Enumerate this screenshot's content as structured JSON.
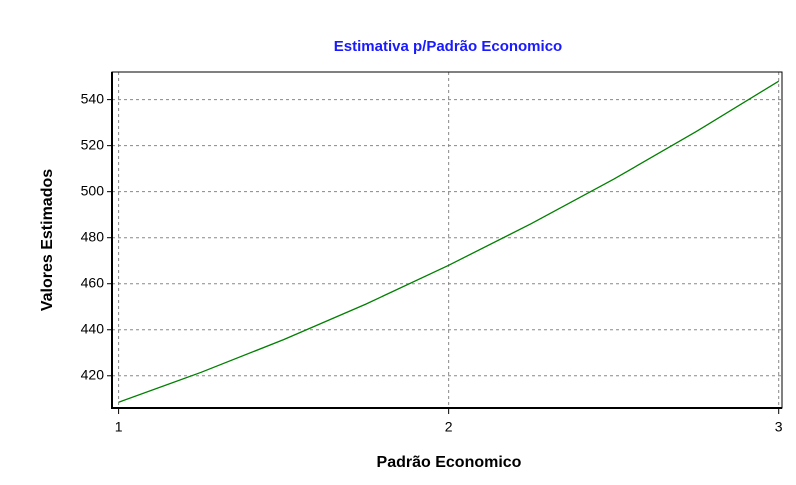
{
  "chart_data": {
    "type": "line",
    "title": "Estimativa p/Padrão Economico",
    "xlabel": "Padrão Economico",
    "ylabel": "Valores Estimados",
    "x": [
      1,
      1.25,
      1.5,
      1.75,
      2,
      2.25,
      2.5,
      2.75,
      3
    ],
    "series": [
      {
        "name": "Estimativa",
        "color": "#008000",
        "values": [
          408.5,
          421.5,
          435.7,
          451.2,
          468,
          486.1,
          505.4,
          526.1,
          548
        ]
      }
    ],
    "xlim": [
      0.98,
      3.01
    ],
    "ylim": [
      406,
      552
    ],
    "xticks": [
      1,
      2,
      3
    ],
    "yticks": [
      420,
      440,
      460,
      480,
      500,
      520,
      540
    ],
    "grid": true
  }
}
